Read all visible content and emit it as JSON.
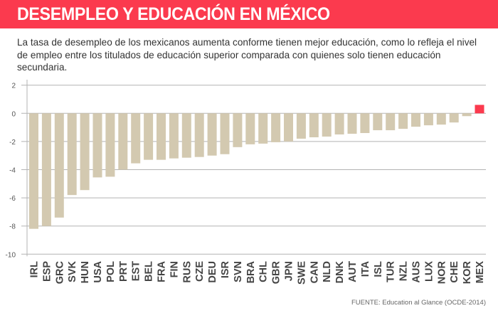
{
  "header": {
    "title": "DESEMPLEO Y EDUCACIÓN EN MÉXICO",
    "background_color": "#fb3a4e"
  },
  "subtitle": "La tasa de desempleo de los mexicanos aumenta conforme tienen mejor educación, como lo refleja el nivel de empleo entre los titulados de educación superior comparada con quienes solo tienen educación secundaria.",
  "footer": {
    "source": "FUENTE: Education al Glance (OCDE-2014)"
  },
  "colors": {
    "bar": "#d3c9b0",
    "highlight": "#fb3a4e",
    "grid": "#b3b3b3",
    "label": "#444444"
  },
  "chart_data": {
    "type": "bar",
    "title": "DESEMPLEO Y EDUCACIÓN EN MÉXICO",
    "xlabel": "",
    "ylabel": "",
    "ylim": [
      -10,
      2
    ],
    "yticks": [
      2,
      0,
      -2,
      -4,
      -6,
      -8,
      -10
    ],
    "grid": true,
    "legend": null,
    "highlight_category": "MEX",
    "categories": [
      "IRL",
      "ESP",
      "GRC",
      "SVK",
      "HUN",
      "USA",
      "POL",
      "PRT",
      "EST",
      "BEL",
      "FRA",
      "FIN",
      "RUS",
      "CZE",
      "DEU",
      "ISR",
      "SVN",
      "BRA",
      "CHL",
      "GBR",
      "JPN",
      "SWE",
      "CAN",
      "NLD",
      "DNK",
      "AUT",
      "ITA",
      "ISL",
      "TUR",
      "NZL",
      "AUS",
      "LUX",
      "NOR",
      "CHE",
      "KOR",
      "MEX"
    ],
    "values": [
      -8.2,
      -8.0,
      -7.4,
      -5.8,
      -5.45,
      -4.55,
      -4.5,
      -4.0,
      -3.55,
      -3.3,
      -3.3,
      -3.2,
      -3.15,
      -3.1,
      -3.0,
      -2.9,
      -2.4,
      -2.2,
      -2.15,
      -2.05,
      -2.0,
      -1.8,
      -1.7,
      -1.65,
      -1.5,
      -1.45,
      -1.4,
      -1.2,
      -1.2,
      -1.1,
      -0.95,
      -0.85,
      -0.8,
      -0.65,
      -0.2,
      0.6
    ]
  }
}
